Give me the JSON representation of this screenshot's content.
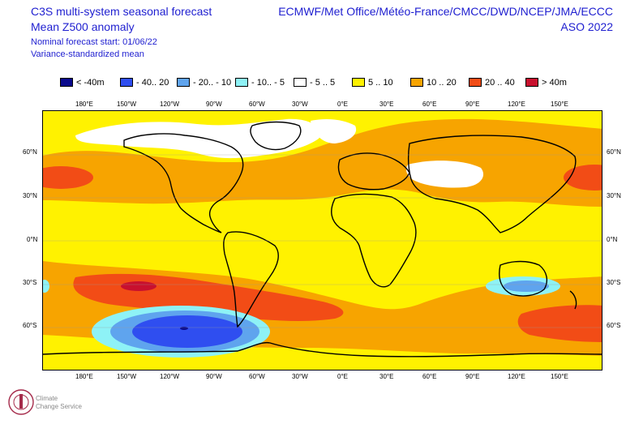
{
  "header": {
    "title_line1": "C3S multi-system seasonal forecast",
    "title_line2": "Mean Z500 anomaly",
    "subtitle_line1": "Nominal forecast start: 01/06/22",
    "subtitle_line2": "Variance-standardized mean",
    "centres": "ECMWF/Met Office/Météo-France/CMCC/DWD/NCEP/JMA/ECCC",
    "season": "ASO 2022"
  },
  "legend": [
    {
      "label": "< -40m",
      "color": "#0a0a8c"
    },
    {
      "label": "- 40.. 20",
      "color": "#2f4ef0"
    },
    {
      "label": "- 20.. - 10",
      "color": "#5fa4ee"
    },
    {
      "label": "- 10.. - 5",
      "color": "#8ef2f6"
    },
    {
      "label": "- 5 .. 5",
      "color": "#ffffff"
    },
    {
      "label": "5 .. 10",
      "color": "#fff200"
    },
    {
      "label": "10 .. 20",
      "color": "#f7a400"
    },
    {
      "label": "20 .. 40",
      "color": "#f24c16"
    },
    {
      "label": "> 40m",
      "color": "#c8102e"
    }
  ],
  "axes": {
    "lon_labels": [
      "180°E",
      "150°W",
      "120°W",
      "90°W",
      "60°W",
      "30°W",
      "0°E",
      "30°E",
      "60°E",
      "90°E",
      "120°E",
      "150°E"
    ],
    "lat_labels": [
      "60°N",
      "30°N",
      "0°N",
      "30°S",
      "60°S"
    ]
  },
  "logo": {
    "line1": "Climate",
    "line2": "Change Service"
  }
}
